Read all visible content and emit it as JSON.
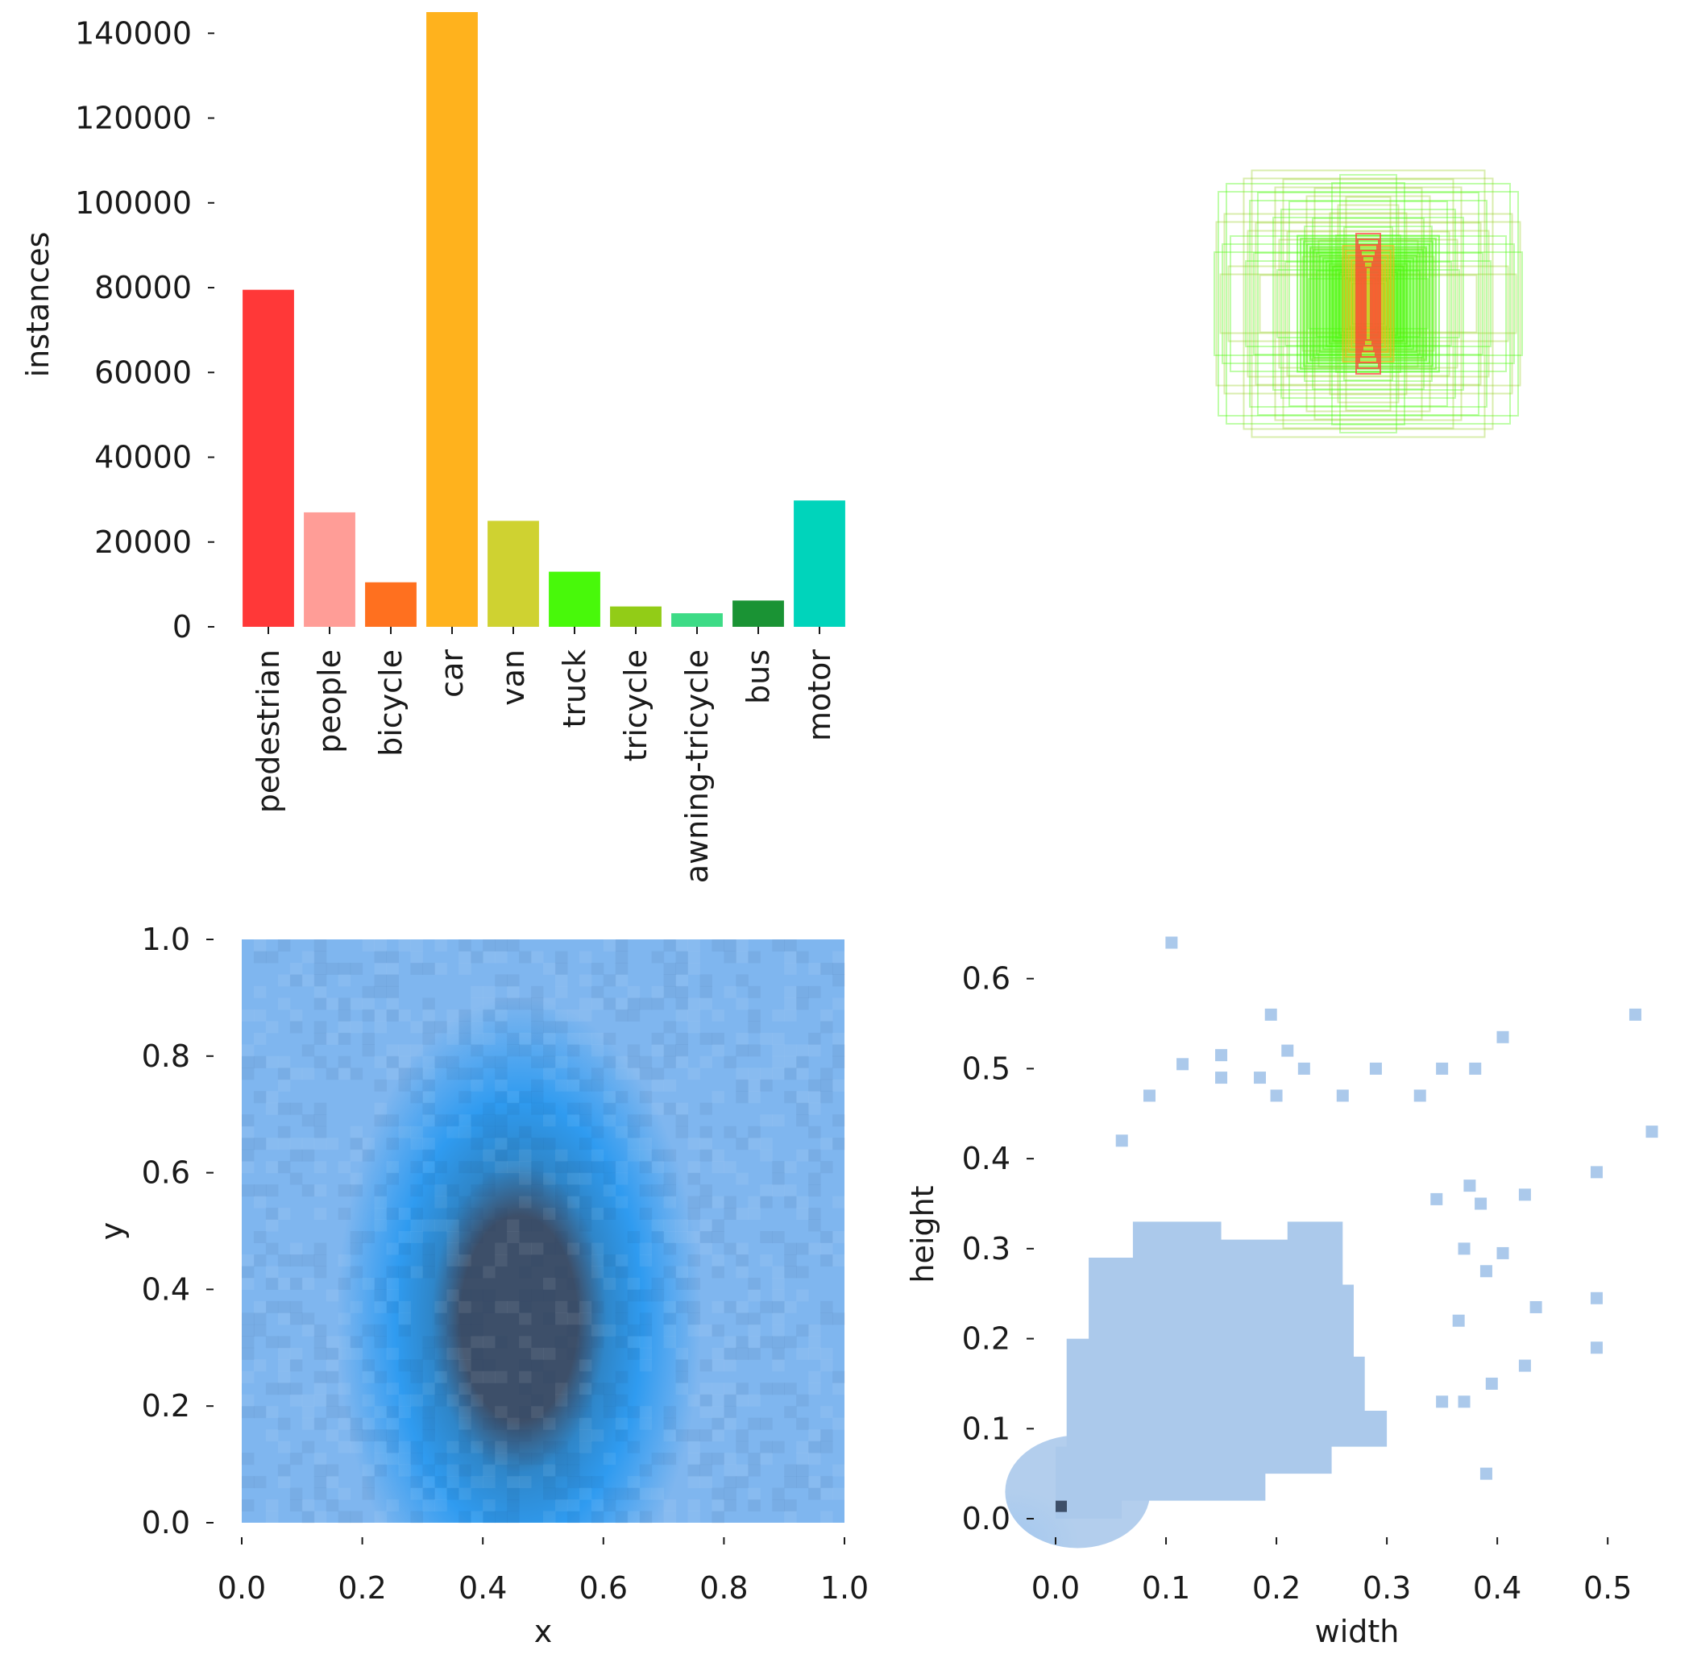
{
  "chart_data": [
    {
      "type": "bar",
      "title": "",
      "xlabel": "",
      "ylabel": "instances",
      "categories": [
        "pedestrian",
        "people",
        "bicycle",
        "car",
        "van",
        "truck",
        "tricycle",
        "awning-tricycle",
        "bus",
        "motor"
      ],
      "values": [
        79500,
        27000,
        10500,
        145000,
        25000,
        13000,
        4800,
        3200,
        6200,
        29800
      ],
      "colors": [
        "#ff3838",
        "#ff9d97",
        "#ff701f",
        "#ffb21d",
        "#cfd231",
        "#48f90a",
        "#92cc17",
        "#3ddb86",
        "#1a9334",
        "#00d4bb"
      ],
      "ylim": [
        0,
        145000
      ],
      "yticks": [
        "0",
        "20000",
        "40000",
        "60000",
        "80000",
        "100000",
        "120000",
        "140000"
      ],
      "grid": false
    },
    {
      "type": "other",
      "title": "",
      "description_kind": "box-overlay",
      "box_colors": [
        "#ff3838",
        "#ffb21d",
        "#48f90a",
        "#92cc17"
      ]
    },
    {
      "type": "heatmap",
      "title": "",
      "xlabel": "x",
      "ylabel": "y",
      "xlim": [
        0,
        1
      ],
      "ylim": [
        0,
        1
      ],
      "xticks": [
        "0.0",
        "0.2",
        "0.4",
        "0.6",
        "0.8",
        "1.0"
      ],
      "yticks": [
        "0.0",
        "0.2",
        "0.4",
        "0.6",
        "0.8",
        "1.0"
      ],
      "density_peak": {
        "x": 0.48,
        "y": 0.3
      },
      "colors": {
        "low": "#a9ccf2",
        "mid": "#2f9bf0",
        "high": "#3d4f69"
      }
    },
    {
      "type": "heatmap",
      "title": "",
      "xlabel": "width",
      "ylabel": "height",
      "xlim": [
        0,
        0.54
      ],
      "ylim": [
        0,
        0.64
      ],
      "xticks": [
        "0.0",
        "0.1",
        "0.2",
        "0.3",
        "0.4",
        "0.5"
      ],
      "yticks": [
        "0.0",
        "0.1",
        "0.2",
        "0.3",
        "0.4",
        "0.5",
        "0.6"
      ],
      "density_peak": {
        "x": 0.01,
        "y": 0.02
      },
      "colors": {
        "low": "#abc9eb",
        "mid": "#2f9bf0",
        "high": "#3d4f69"
      },
      "outliers": [
        [
          0.105,
          0.64
        ],
        [
          0.195,
          0.56
        ],
        [
          0.525,
          0.56
        ],
        [
          0.405,
          0.535
        ],
        [
          0.21,
          0.52
        ],
        [
          0.15,
          0.515
        ],
        [
          0.115,
          0.505
        ],
        [
          0.15,
          0.49
        ],
        [
          0.185,
          0.49
        ],
        [
          0.225,
          0.5
        ],
        [
          0.29,
          0.5
        ],
        [
          0.35,
          0.5
        ],
        [
          0.38,
          0.5
        ],
        [
          0.085,
          0.47
        ],
        [
          0.2,
          0.47
        ],
        [
          0.26,
          0.47
        ],
        [
          0.33,
          0.47
        ],
        [
          0.54,
          0.43
        ],
        [
          0.06,
          0.42
        ],
        [
          0.49,
          0.385
        ],
        [
          0.375,
          0.37
        ],
        [
          0.425,
          0.36
        ],
        [
          0.345,
          0.355
        ],
        [
          0.385,
          0.35
        ],
        [
          0.37,
          0.3
        ],
        [
          0.405,
          0.295
        ],
        [
          0.39,
          0.275
        ],
        [
          0.435,
          0.235
        ],
        [
          0.365,
          0.22
        ],
        [
          0.49,
          0.245
        ],
        [
          0.49,
          0.19
        ],
        [
          0.425,
          0.17
        ],
        [
          0.395,
          0.15
        ],
        [
          0.35,
          0.13
        ],
        [
          0.37,
          0.13
        ],
        [
          0.39,
          0.05
        ]
      ]
    }
  ]
}
